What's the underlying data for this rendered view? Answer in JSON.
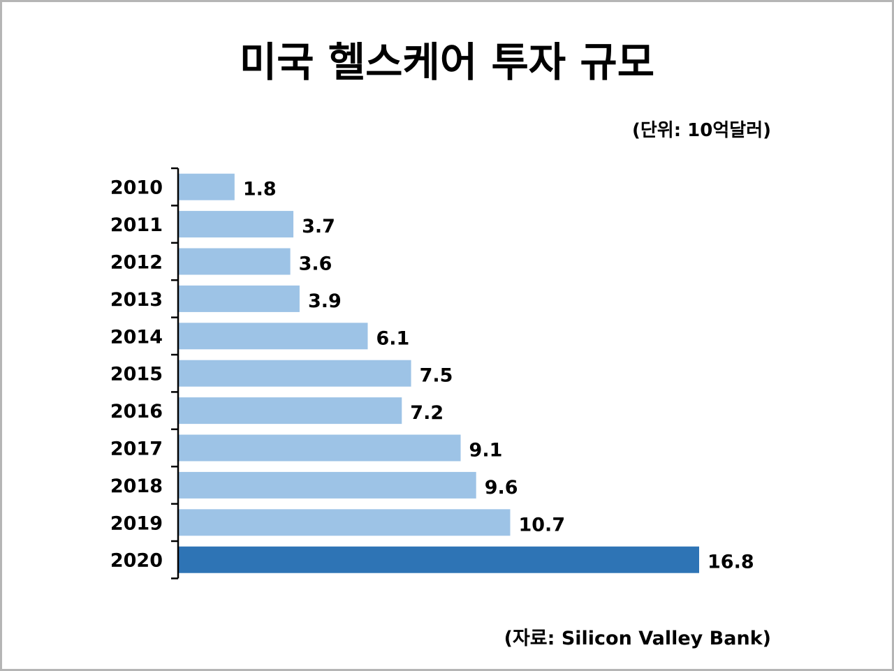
{
  "title": "미국 헬스케어 투자 규모",
  "unit_note": "(단위: 10억달러)",
  "source_note": "(자료: Silicon Valley Bank)",
  "colors": {
    "bar": "#9dc3e6",
    "bar_highlight": "#2e74b5",
    "axis": "#000000",
    "border": "#b5b5b5"
  },
  "chart_data": {
    "type": "bar",
    "orientation": "horizontal",
    "categories": [
      "2010",
      "2011",
      "2012",
      "2013",
      "2014",
      "2015",
      "2016",
      "2017",
      "2018",
      "2019",
      "2020"
    ],
    "values": [
      1.8,
      3.7,
      3.6,
      3.9,
      6.1,
      7.5,
      7.2,
      9.1,
      9.6,
      10.7,
      16.8
    ],
    "value_labels": [
      "1.8",
      "3.7",
      "3.6",
      "3.9",
      "6.1",
      "7.5",
      "7.2",
      "9.1",
      "9.6",
      "10.7",
      "16.8"
    ],
    "highlight_category": "2020",
    "xlim": [
      0,
      16.8
    ],
    "grid": false,
    "legend": "none",
    "title": "미국 헬스케어 투자 규모",
    "xlabel": "",
    "ylabel": ""
  }
}
